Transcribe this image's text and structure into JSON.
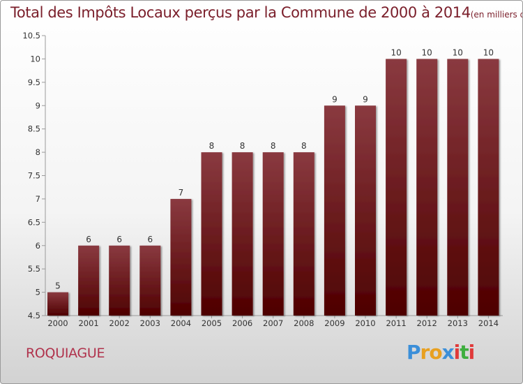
{
  "chart_data": {
    "type": "bar",
    "title": "Total des Impôts Locaux perçus par la Commune de 2000 à 2014",
    "subtitle": "(en milliers d'€)",
    "categories": [
      "2000",
      "2001",
      "2002",
      "2003",
      "2004",
      "2005",
      "2006",
      "2007",
      "2008",
      "2009",
      "2010",
      "2011",
      "2012",
      "2013",
      "2014"
    ],
    "values": [
      5,
      6,
      6,
      6,
      7,
      8,
      8,
      8,
      8,
      9,
      9,
      10,
      10,
      10,
      10
    ],
    "data_labels": [
      "5",
      "6",
      "6",
      "6",
      "7",
      "8",
      "8",
      "8",
      "8",
      "9",
      "9",
      "10",
      "10",
      "10",
      "10"
    ],
    "ylim": [
      4.5,
      10.5
    ],
    "yticks": [
      4.5,
      5,
      5.5,
      6,
      6.5,
      7,
      7.5,
      8,
      8.5,
      9,
      9.5,
      10,
      10.5
    ],
    "ytick_labels": [
      "4.5",
      "5",
      "5.5",
      "6",
      "6.5",
      "7",
      "7.5",
      "8",
      "8.5",
      "9",
      "9.5",
      "10",
      "10.5"
    ],
    "xlabel": "",
    "ylabel": "",
    "grid": false,
    "bar_color_top": "#8a3a40",
    "bar_color_bottom": "#4e0000"
  },
  "footer": {
    "commune_name": "ROQUIAGUE",
    "brand_letters": [
      "P",
      "r",
      "o",
      "x",
      "i",
      "t",
      "i"
    ],
    "brand_colors": [
      "#3b8fd9",
      "#e8a020",
      "#e8a020",
      "#3b8fd9",
      "#e03a3a",
      "#3fae3f",
      "#e03a3a"
    ]
  }
}
